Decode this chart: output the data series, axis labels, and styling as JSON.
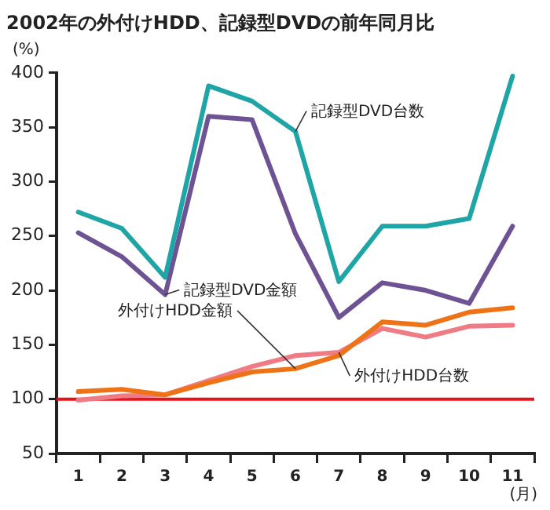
{
  "chart_data": {
    "type": "line",
    "title": "2002年の外付けHDD、記録型DVDの前年同月比",
    "xlabel": "(月)",
    "ylabel": "(%)",
    "categories": [
      "1",
      "2",
      "3",
      "4",
      "5",
      "6",
      "7",
      "8",
      "9",
      "10",
      "11"
    ],
    "series": [
      {
        "name": "記録型DVD台数",
        "color": "#1fa5a5",
        "values": [
          272,
          257,
          212,
          388,
          374,
          346,
          208,
          259,
          259,
          266,
          397
        ]
      },
      {
        "name": "記録型DVD金額",
        "color": "#6e5394",
        "values": [
          253,
          231,
          196,
          360,
          357,
          252,
          175,
          207,
          200,
          188,
          259
        ]
      },
      {
        "name": "外付けHDD金額",
        "color": "#ee7216",
        "values": [
          107,
          109,
          104,
          115,
          125,
          128,
          140,
          171,
          168,
          180,
          184
        ]
      },
      {
        "name": "外付けHDD台数",
        "color": "#ef7b85",
        "values": [
          99,
          103,
          104,
          117,
          130,
          140,
          143,
          165,
          157,
          167,
          168
        ]
      }
    ],
    "ylim": [
      50,
      400
    ],
    "yticks": [
      50,
      100,
      150,
      200,
      250,
      300,
      350,
      400
    ],
    "ref_lines": [
      {
        "axis": "y",
        "value": 100,
        "color": "#e8141b"
      }
    ],
    "grid": false,
    "legend": false,
    "marker": "none",
    "line_style": "solid"
  }
}
